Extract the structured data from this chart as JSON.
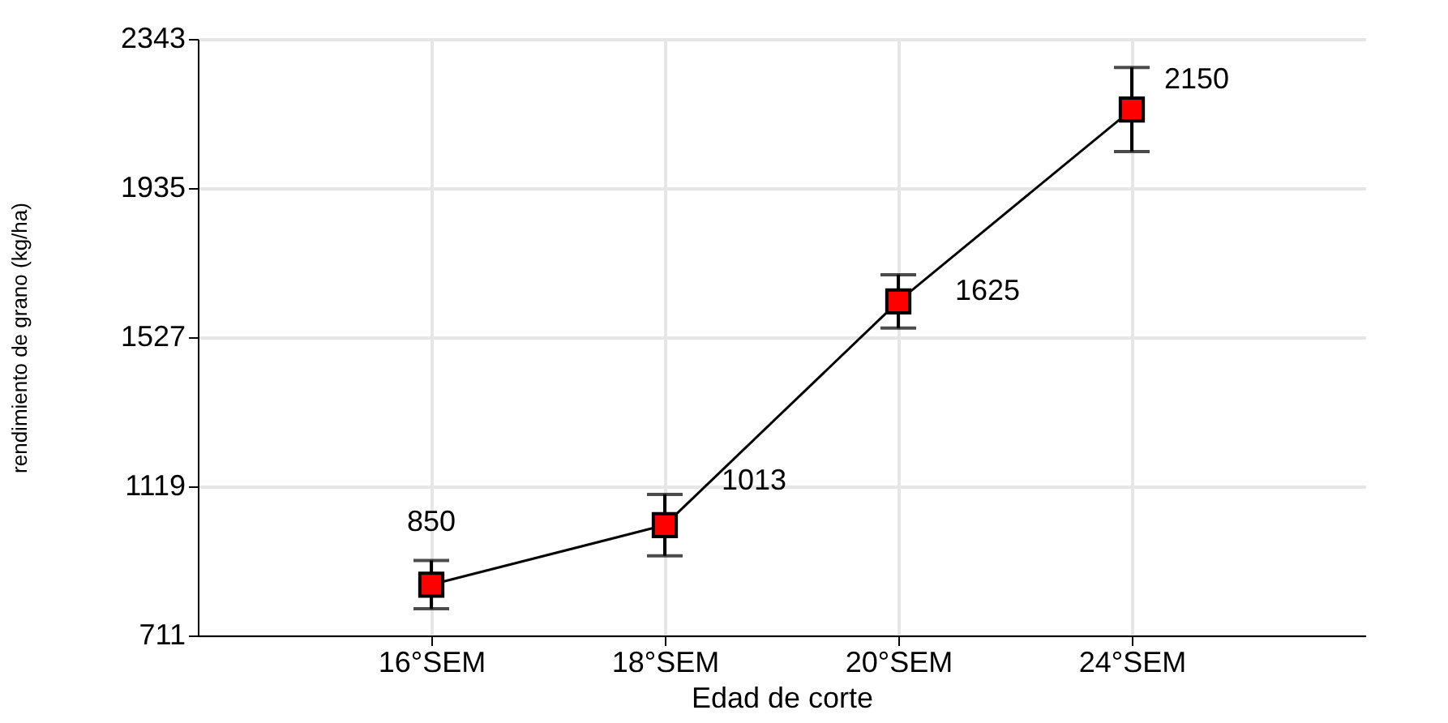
{
  "chart_data": {
    "type": "line",
    "xlabel": "Edad de corte",
    "ylabel": "rendimiento de grano (kg/ha)",
    "categories": [
      "16°SEM",
      "18°SEM",
      "20°SEM",
      "24°SEM"
    ],
    "series": [
      {
        "color": "#ff0000",
        "values": [
          850,
          1013,
          1625,
          2150
        ],
        "errors": [
          66,
          84,
          73,
          115
        ]
      }
    ],
    "ylim": [
      711,
      2343
    ],
    "yticks": [
      711,
      1119,
      1527,
      1935,
      2343
    ],
    "grid": true,
    "marker": "square",
    "line_style": "solid",
    "data_labels": true,
    "legend": false
  }
}
